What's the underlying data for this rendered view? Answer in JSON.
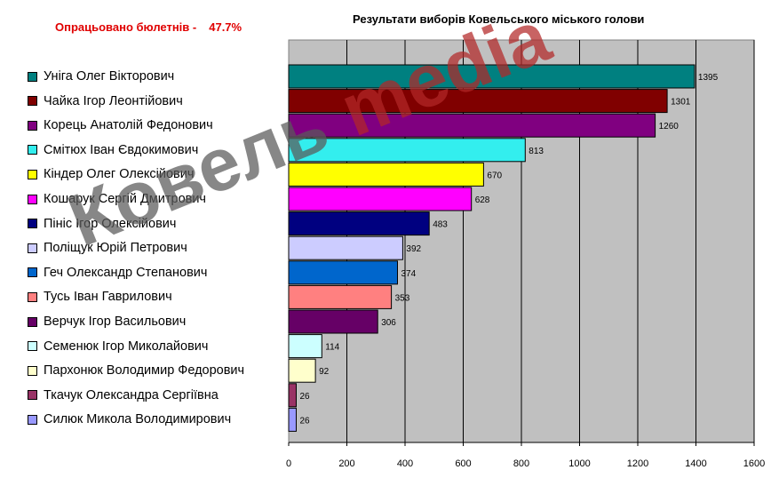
{
  "status": {
    "label": "Опрацьовано бюлетнів -",
    "percent": "47.7%"
  },
  "colors": {
    "status_text": "#e00000",
    "plot_background": "#c0c0c0",
    "watermark_word1": "#5a5a5a",
    "watermark_word2": "#b32828"
  },
  "watermark": {
    "word1": "Ковель",
    "word2": "media"
  },
  "chart_data": {
    "type": "bar",
    "orientation": "horizontal",
    "title": "Результати виборів Ковельського міського голови",
    "xlim": [
      0,
      1600
    ],
    "xticks": [
      0,
      200,
      400,
      600,
      800,
      1000,
      1200,
      1400,
      1600
    ],
    "grid": true,
    "legend_placement": "left",
    "categories": [
      "Уніга Олег Вікторович",
      "Чайка Ігор Леонтійович",
      "Корець Анатолій Федонович",
      "Смітюх Іван Євдокимович",
      "Кіндер Олег Олексійович",
      "Кошарук Сергій Дмитрович",
      "Пініс Ігор Олексійович",
      "Поліщук Юрій Петрович",
      "Геч Олександр Степанович",
      "Тусь Іван Гаврилович",
      "Верчук Ігор Васильович",
      "Семенюк Ігор Миколайович",
      "Пархонюк Володимир Федорович",
      "Ткачук Олександра Сергіївна",
      "Силюк Микола Володимирович"
    ],
    "values": [
      1395,
      1301,
      1260,
      813,
      670,
      628,
      483,
      392,
      374,
      353,
      306,
      114,
      92,
      26,
      26
    ],
    "colors": [
      "#008080",
      "#800000",
      "#800080",
      "#33eeee",
      "#ffff00",
      "#ff00ff",
      "#000080",
      "#ccccff",
      "#0066cc",
      "#ff8080",
      "#660066",
      "#ccffff",
      "#ffffcc",
      "#993366",
      "#9999ff"
    ]
  }
}
